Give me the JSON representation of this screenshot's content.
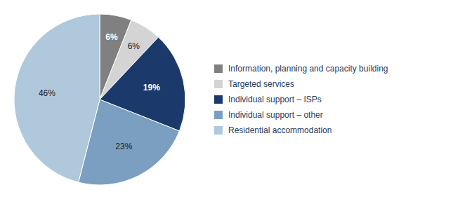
{
  "chart_data": {
    "type": "pie",
    "categories": [
      "Information, planning and capacity building",
      "Targeted services",
      "Individual support – ISPs",
      "Individual support – other",
      "Residential accommodation"
    ],
    "values": [
      6,
      6,
      19,
      23,
      46
    ],
    "value_labels": [
      "6%",
      "6%",
      "19%",
      "23%",
      "46%"
    ],
    "colors": [
      "#808080",
      "#d4d4d4",
      "#1b3a6b",
      "#7a9fc0",
      "#b0c8dc"
    ],
    "data_labels": true,
    "legend": "right"
  }
}
